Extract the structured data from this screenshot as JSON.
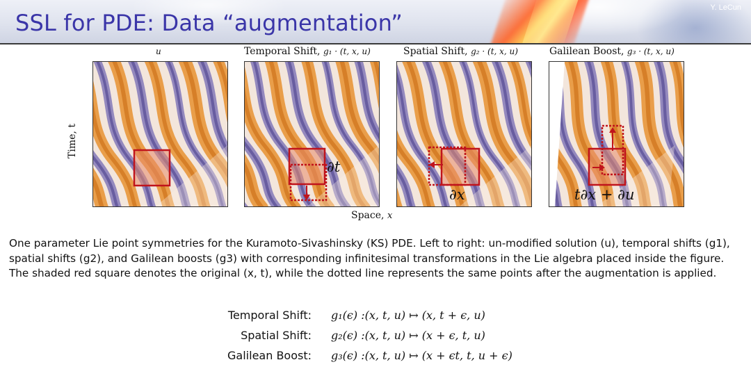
{
  "slide": {
    "title": "SSL for PDE: Data “augmentation”",
    "author": "Y. LeCun"
  },
  "figure": {
    "panels": [
      {
        "name": "u",
        "math": ""
      },
      {
        "name": "Temporal Shift, ",
        "math": "g₁ · (t, x, u)"
      },
      {
        "name": "Spatial Shift, ",
        "math": "g₂ · (t, x, u)"
      },
      {
        "name": "Galilean Boost, ",
        "math": "g₃ · (t, x, u)"
      }
    ],
    "y_axis_label": "Time, t",
    "x_axis_label": "Space, ",
    "x_axis_math": "x",
    "overlay_labels": {
      "temporal": "∂t",
      "spatial": "∂x",
      "galilean": "t∂x + ∂u"
    }
  },
  "caption": "One parameter Lie point symmetries for the Kuramoto-Sivashinsky (KS) PDE. Left to right: un-modified solution (u), temporal shifts (g1), spatial shifts (g2), and Galilean boosts (g3) with corresponding infinitesimal transformations in the Lie algebra placed inside the figure. The shaded red square denotes the original (x, t), while the dotted line represents the same points after the augmentation is applied.",
  "equations": [
    {
      "name": "Temporal Shift:",
      "formula": "g₁(ϵ) :(x, t, u) ↦ (x, t + ϵ, u)"
    },
    {
      "name": "Spatial Shift:",
      "formula": "g₂(ϵ) :(x, t, u) ↦ (x + ϵ, t, u)"
    },
    {
      "name": "Galilean Boost:",
      "formula": "g₃(ϵ) :(x, t, u) ↦ (x + ϵt, t, u + ϵ)"
    }
  ],
  "colors": {
    "title": "#3a35a8",
    "orange": "#e8963a",
    "purple": "#8378b8",
    "box_red": "#c0141c"
  }
}
